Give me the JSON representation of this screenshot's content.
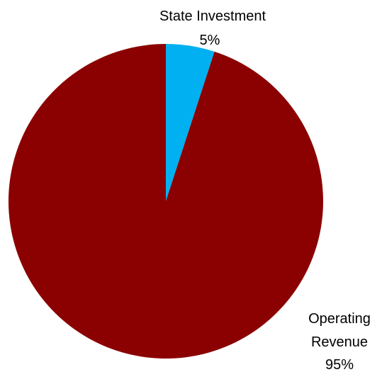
{
  "chart_data": {
    "type": "pie",
    "title": "",
    "start_angle_deg": 0,
    "direction": "clockwise",
    "legend": "none",
    "slices": [
      {
        "name": "State Investment",
        "value": 5,
        "value_label": "5%",
        "color": "#00b0f0",
        "label_lines": [
          "State Investment"
        ]
      },
      {
        "name": "Operating Revenue",
        "value": 95,
        "value_label": "95%",
        "color": "#8b0000",
        "label_lines": [
          "Operating",
          "Revenue"
        ]
      }
    ]
  }
}
